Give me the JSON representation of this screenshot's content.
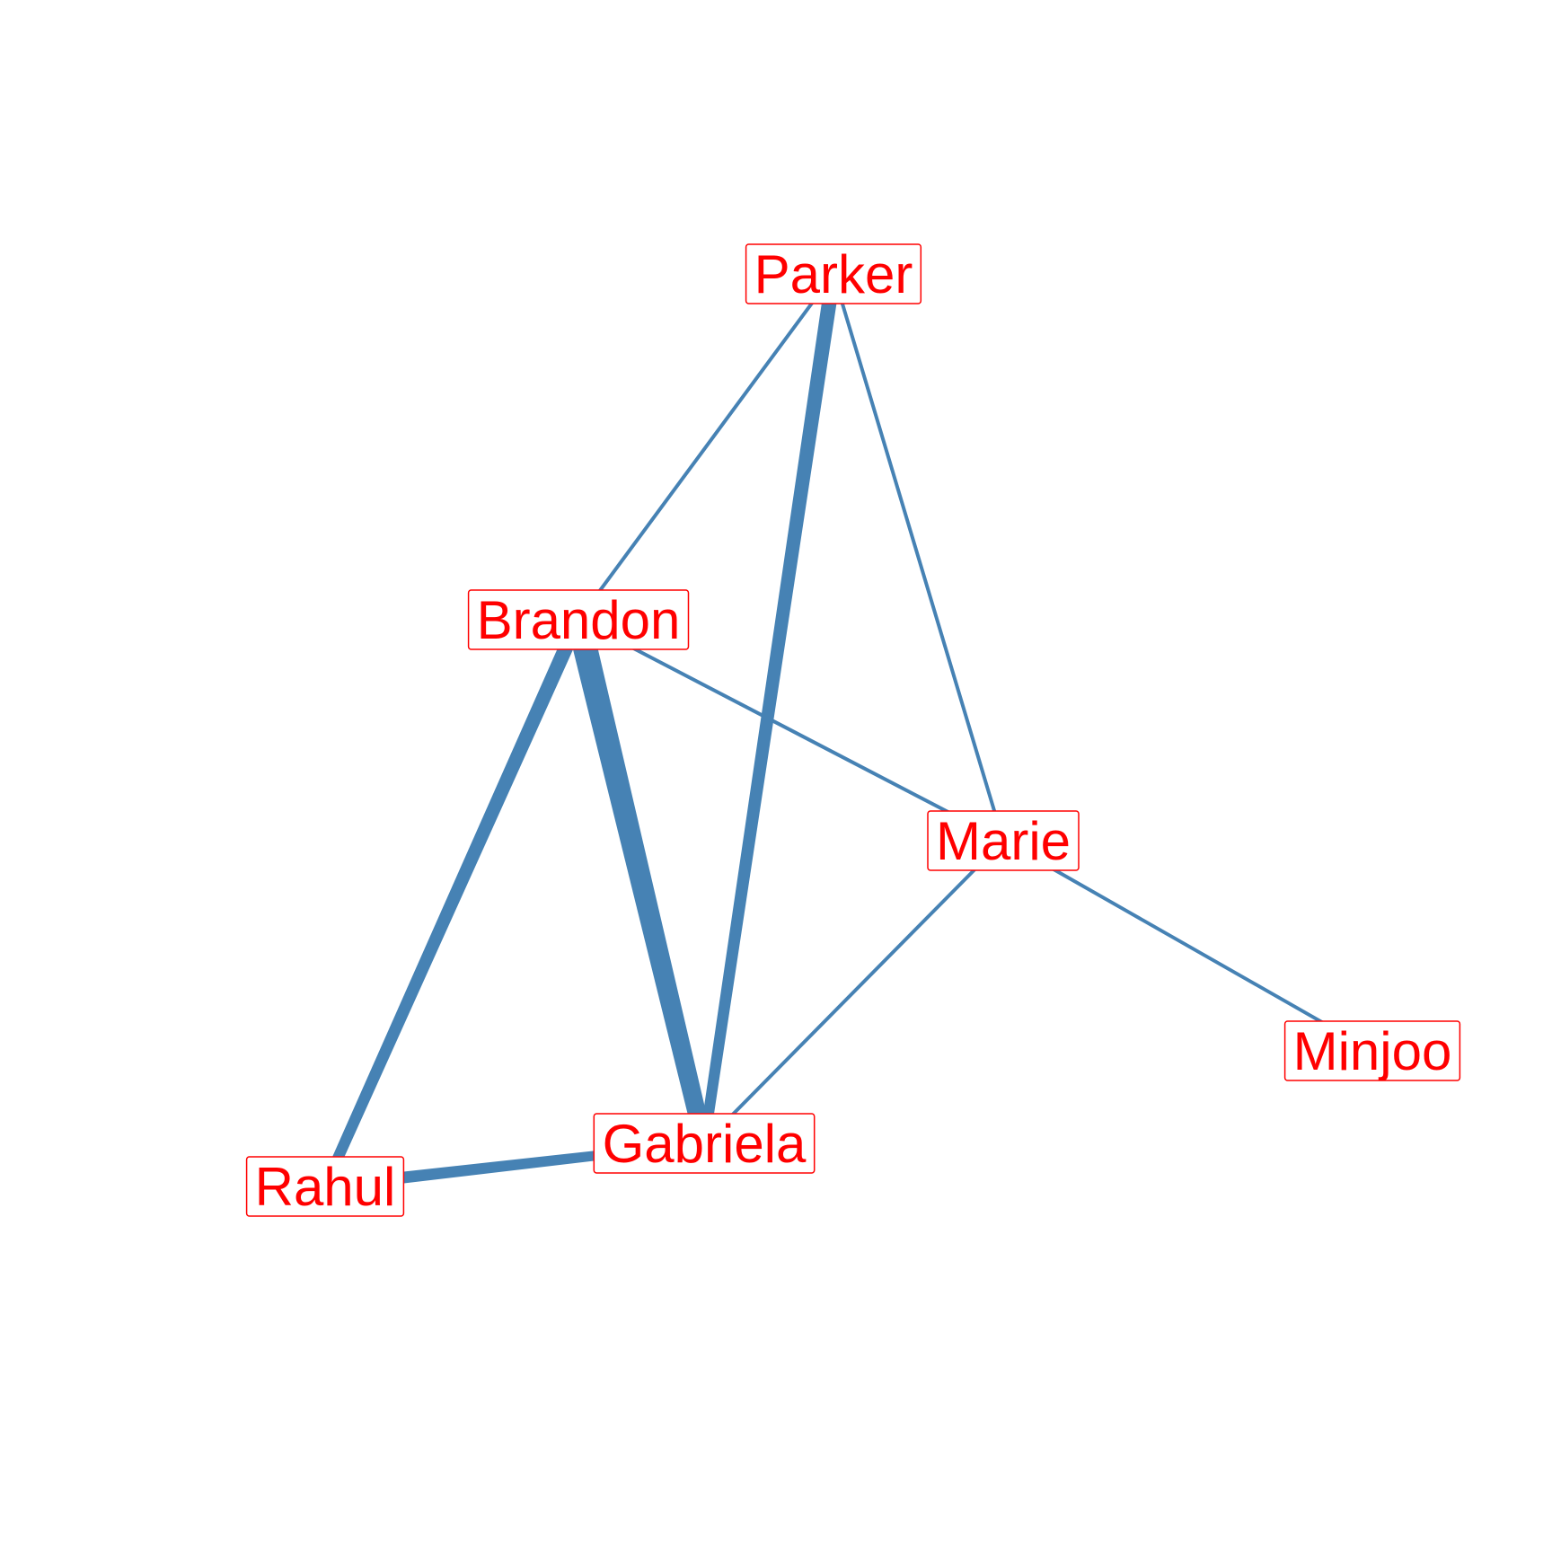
{
  "diagram": {
    "colors": {
      "edge": "#4682B4",
      "label_text": "#FF0000",
      "label_border": "#FF0000",
      "label_fill": "#FFFFFF",
      "background": "#FFFFFF"
    },
    "nodes": [
      {
        "id": "parker",
        "label": "Parker"
      },
      {
        "id": "brandon",
        "label": "Brandon"
      },
      {
        "id": "marie",
        "label": "Marie"
      },
      {
        "id": "minjoo",
        "label": "Minjoo"
      },
      {
        "id": "gabriela",
        "label": "Gabriela"
      },
      {
        "id": "rahul",
        "label": "Rahul"
      }
    ],
    "edges": [
      {
        "source": "brandon",
        "target": "gabriela",
        "weight": 5
      },
      {
        "source": "parker",
        "target": "gabriela",
        "weight": 3
      },
      {
        "source": "brandon",
        "target": "rahul",
        "weight": 3
      },
      {
        "source": "rahul",
        "target": "gabriela",
        "weight": 2.5
      },
      {
        "source": "parker",
        "target": "brandon",
        "weight": 1
      },
      {
        "source": "parker",
        "target": "marie",
        "weight": 1
      },
      {
        "source": "brandon",
        "target": "marie",
        "weight": 1
      },
      {
        "source": "marie",
        "target": "gabriela",
        "weight": 1
      },
      {
        "source": "marie",
        "target": "minjoo",
        "weight": 1
      }
    ]
  }
}
